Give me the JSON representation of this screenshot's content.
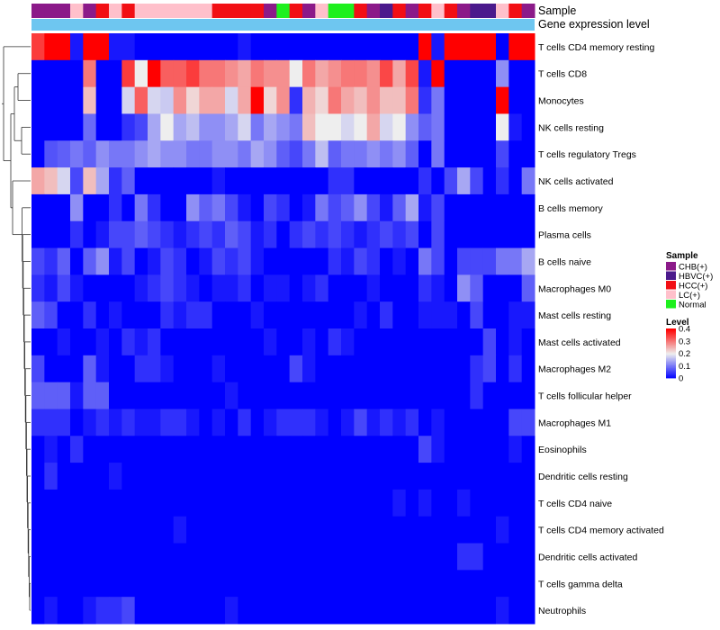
{
  "chart_data": {
    "type": "heatmap",
    "track_labels": {
      "sample": "Sample",
      "expression": "Gene expression level"
    },
    "sample_colors": {
      "CHB(+)": "#8B1A89",
      "HBVC(+)": "#4B1A8C",
      "HCC(+)": "#F20F14",
      "LC(+)": "#FFC0CB",
      "Normal": "#1EF01E"
    },
    "expression_track_color": "#6EC6F0",
    "sample_order": [
      "CHB(+)",
      "CHB(+)",
      "CHB(+)",
      "LC(+)",
      "CHB(+)",
      "HCC(+)",
      "LC(+)",
      "HCC(+)",
      "LC(+)",
      "LC(+)",
      "LC(+)",
      "LC(+)",
      "LC(+)",
      "LC(+)",
      "HCC(+)",
      "HCC(+)",
      "HCC(+)",
      "HCC(+)",
      "CHB(+)",
      "Normal",
      "HCC(+)",
      "CHB(+)",
      "LC(+)",
      "Normal",
      "Normal",
      "HCC(+)",
      "CHB(+)",
      "HBVC(+)",
      "HCC(+)",
      "CHB(+)",
      "HCC(+)",
      "LC(+)",
      "HCC(+)",
      "CHB(+)",
      "HBVC(+)",
      "HBVC(+)",
      "LC(+)",
      "HCC(+)",
      "CHB(+)"
    ],
    "rows": [
      "T cells CD4 memory resting",
      "T cells CD8",
      "Monocytes",
      "NK cells resting",
      "T cells regulatory  Tregs",
      "NK cells activated",
      "B cells memory",
      "Plasma cells",
      "B cells naive",
      "Macrophages M0",
      "Mast cells resting",
      "Mast cells activated",
      "Macrophages M2",
      "T cells follicular helper",
      "Macrophages M1",
      "Eosinophils",
      "Dendritic cells resting",
      "T cells CD4 naive",
      "T cells CD4 memory activated",
      "Dendritic cells activated",
      "T cells gamma delta",
      "Neutrophils"
    ],
    "values": [
      [
        0.35,
        0.4,
        0.4,
        0.02,
        0.4,
        0.4,
        0.02,
        0.02,
        0.0,
        0.0,
        0.0,
        0.0,
        0.0,
        0.0,
        0.0,
        0.0,
        0.02,
        0.0,
        0.0,
        0.0,
        0.0,
        0.0,
        0.0,
        0.0,
        0.0,
        0.0,
        0.0,
        0.0,
        0.0,
        0.0,
        0.4,
        0.02,
        0.4,
        0.4,
        0.4,
        0.4,
        0.0,
        0.4,
        0.4
      ],
      [
        0.0,
        0.0,
        0.0,
        0.0,
        0.3,
        0.0,
        0.0,
        0.35,
        0.2,
        0.4,
        0.32,
        0.32,
        0.35,
        0.3,
        0.3,
        0.28,
        0.26,
        0.3,
        0.28,
        0.28,
        0.2,
        0.3,
        0.26,
        0.28,
        0.3,
        0.3,
        0.28,
        0.34,
        0.26,
        0.34,
        0.02,
        0.4,
        0.0,
        0.0,
        0.0,
        0.0,
        0.12,
        0.0,
        0.0
      ],
      [
        0.0,
        0.0,
        0.0,
        0.0,
        0.24,
        0.0,
        0.0,
        0.18,
        0.32,
        0.18,
        0.17,
        0.28,
        0.22,
        0.26,
        0.26,
        0.18,
        0.26,
        0.4,
        0.22,
        0.28,
        0.04,
        0.25,
        0.22,
        0.3,
        0.26,
        0.24,
        0.28,
        0.24,
        0.24,
        0.3,
        0.04,
        0.1,
        0.0,
        0.0,
        0.0,
        0.0,
        0.4,
        0.0,
        0.0
      ],
      [
        0.0,
        0.0,
        0.0,
        0.0,
        0.09,
        0.0,
        0.0,
        0.04,
        0.06,
        0.14,
        0.2,
        0.14,
        0.16,
        0.12,
        0.12,
        0.14,
        0.18,
        0.1,
        0.14,
        0.12,
        0.1,
        0.24,
        0.2,
        0.2,
        0.18,
        0.2,
        0.26,
        0.18,
        0.2,
        0.12,
        0.08,
        0.1,
        0.0,
        0.0,
        0.0,
        0.0,
        0.2,
        0.02,
        0.0
      ],
      [
        0.0,
        0.07,
        0.08,
        0.1,
        0.08,
        0.12,
        0.1,
        0.1,
        0.12,
        0.14,
        0.12,
        0.12,
        0.1,
        0.1,
        0.12,
        0.12,
        0.1,
        0.14,
        0.12,
        0.08,
        0.06,
        0.1,
        0.16,
        0.08,
        0.1,
        0.1,
        0.12,
        0.1,
        0.12,
        0.08,
        0.0,
        0.1,
        0.0,
        0.0,
        0.0,
        0.0,
        0.06,
        0.0,
        0.0
      ],
      [
        0.26,
        0.24,
        0.18,
        0.06,
        0.24,
        0.14,
        0.04,
        0.08,
        0.0,
        0.0,
        0.0,
        0.0,
        0.0,
        0.0,
        0.02,
        0.0,
        0.0,
        0.0,
        0.0,
        0.0,
        0.0,
        0.0,
        0.0,
        0.04,
        0.04,
        0.0,
        0.0,
        0.0,
        0.0,
        0.0,
        0.04,
        0.0,
        0.06,
        0.14,
        0.06,
        0.0,
        0.04,
        0.0,
        0.1
      ],
      [
        0.0,
        0.0,
        0.0,
        0.12,
        0.0,
        0.0,
        0.04,
        0.0,
        0.1,
        0.04,
        0.0,
        0.0,
        0.12,
        0.08,
        0.1,
        0.06,
        0.02,
        0.0,
        0.06,
        0.04,
        0.0,
        0.02,
        0.1,
        0.06,
        0.08,
        0.12,
        0.06,
        0.02,
        0.08,
        0.14,
        0.02,
        0.06,
        0.0,
        0.0,
        0.0,
        0.0,
        0.0,
        0.0,
        0.0
      ],
      [
        0.0,
        0.0,
        0.0,
        0.04,
        0.0,
        0.02,
        0.06,
        0.06,
        0.08,
        0.06,
        0.04,
        0.02,
        0.04,
        0.06,
        0.04,
        0.08,
        0.06,
        0.02,
        0.04,
        0.0,
        0.04,
        0.06,
        0.04,
        0.06,
        0.04,
        0.02,
        0.04,
        0.06,
        0.04,
        0.06,
        0.0,
        0.06,
        0.0,
        0.0,
        0.0,
        0.0,
        0.0,
        0.0,
        0.0
      ],
      [
        0.06,
        0.04,
        0.08,
        0.0,
        0.08,
        0.12,
        0.02,
        0.06,
        0.0,
        0.02,
        0.06,
        0.04,
        0.0,
        0.02,
        0.06,
        0.04,
        0.06,
        0.02,
        0.0,
        0.0,
        0.0,
        0.0,
        0.0,
        0.04,
        0.02,
        0.06,
        0.04,
        0.0,
        0.02,
        0.0,
        0.1,
        0.06,
        0.0,
        0.06,
        0.06,
        0.06,
        0.1,
        0.1,
        0.14
      ],
      [
        0.04,
        0.02,
        0.06,
        0.02,
        0.0,
        0.0,
        0.0,
        0.0,
        0.02,
        0.04,
        0.06,
        0.04,
        0.02,
        0.0,
        0.02,
        0.02,
        0.04,
        0.0,
        0.02,
        0.02,
        0.0,
        0.02,
        0.04,
        0.0,
        0.0,
        0.0,
        0.02,
        0.0,
        0.0,
        0.0,
        0.04,
        0.02,
        0.0,
        0.12,
        0.08,
        0.0,
        0.0,
        0.0,
        0.08
      ],
      [
        0.08,
        0.06,
        0.0,
        0.0,
        0.04,
        0.0,
        0.02,
        0.0,
        0.0,
        0.0,
        0.04,
        0.02,
        0.04,
        0.04,
        0.0,
        0.0,
        0.0,
        0.02,
        0.0,
        0.0,
        0.0,
        0.0,
        0.0,
        0.0,
        0.0,
        0.02,
        0.0,
        0.04,
        0.0,
        0.0,
        0.02,
        0.02,
        0.02,
        0.0,
        0.06,
        0.0,
        0.0,
        0.02,
        0.02
      ],
      [
        0.0,
        0.0,
        0.02,
        0.0,
        0.0,
        0.02,
        0.0,
        0.04,
        0.02,
        0.04,
        0.0,
        0.0,
        0.0,
        0.0,
        0.0,
        0.0,
        0.0,
        0.0,
        0.02,
        0.0,
        0.0,
        0.02,
        0.0,
        0.04,
        0.02,
        0.0,
        0.0,
        0.0,
        0.0,
        0.0,
        0.0,
        0.0,
        0.0,
        0.0,
        0.0,
        0.06,
        0.0,
        0.02,
        0.0
      ],
      [
        0.06,
        0.0,
        0.0,
        0.0,
        0.08,
        0.02,
        0.0,
        0.0,
        0.04,
        0.04,
        0.02,
        0.0,
        0.0,
        0.0,
        0.02,
        0.0,
        0.0,
        0.0,
        0.0,
        0.0,
        0.06,
        0.02,
        0.0,
        0.0,
        0.0,
        0.0,
        0.0,
        0.0,
        0.0,
        0.0,
        0.0,
        0.0,
        0.0,
        0.0,
        0.04,
        0.06,
        0.0,
        0.04,
        0.0
      ],
      [
        0.08,
        0.08,
        0.08,
        0.02,
        0.08,
        0.08,
        0.0,
        0.0,
        0.0,
        0.0,
        0.0,
        0.0,
        0.0,
        0.0,
        0.0,
        0.02,
        0.0,
        0.0,
        0.0,
        0.0,
        0.0,
        0.0,
        0.0,
        0.0,
        0.0,
        0.0,
        0.0,
        0.0,
        0.0,
        0.0,
        0.0,
        0.0,
        0.0,
        0.0,
        0.04,
        0.0,
        0.0,
        0.0,
        0.0
      ],
      [
        0.04,
        0.04,
        0.04,
        0.0,
        0.02,
        0.04,
        0.02,
        0.04,
        0.02,
        0.02,
        0.04,
        0.04,
        0.02,
        0.0,
        0.02,
        0.0,
        0.04,
        0.0,
        0.02,
        0.04,
        0.04,
        0.04,
        0.02,
        0.0,
        0.02,
        0.06,
        0.02,
        0.04,
        0.02,
        0.04,
        0.0,
        0.02,
        0.0,
        0.0,
        0.0,
        0.0,
        0.0,
        0.06,
        0.06
      ],
      [
        0.0,
        0.02,
        0.0,
        0.04,
        0.0,
        0.0,
        0.0,
        0.0,
        0.0,
        0.0,
        0.0,
        0.0,
        0.0,
        0.0,
        0.0,
        0.0,
        0.0,
        0.0,
        0.0,
        0.0,
        0.0,
        0.0,
        0.0,
        0.0,
        0.0,
        0.0,
        0.0,
        0.0,
        0.0,
        0.0,
        0.06,
        0.02,
        0.0,
        0.0,
        0.0,
        0.0,
        0.0,
        0.02,
        0.0
      ],
      [
        0.0,
        0.04,
        0.0,
        0.0,
        0.0,
        0.0,
        0.02,
        0.0,
        0.0,
        0.0,
        0.0,
        0.0,
        0.0,
        0.0,
        0.0,
        0.0,
        0.0,
        0.0,
        0.0,
        0.0,
        0.0,
        0.0,
        0.0,
        0.0,
        0.0,
        0.0,
        0.0,
        0.0,
        0.0,
        0.0,
        0.0,
        0.0,
        0.0,
        0.0,
        0.0,
        0.0,
        0.0,
        0.0,
        0.0
      ],
      [
        0.0,
        0.0,
        0.0,
        0.0,
        0.0,
        0.0,
        0.0,
        0.0,
        0.0,
        0.0,
        0.0,
        0.0,
        0.0,
        0.0,
        0.0,
        0.0,
        0.0,
        0.0,
        0.0,
        0.0,
        0.0,
        0.0,
        0.0,
        0.0,
        0.0,
        0.0,
        0.0,
        0.0,
        0.02,
        0.0,
        0.02,
        0.0,
        0.0,
        0.02,
        0.0,
        0.0,
        0.0,
        0.0,
        0.0
      ],
      [
        0.0,
        0.0,
        0.0,
        0.0,
        0.0,
        0.0,
        0.0,
        0.0,
        0.0,
        0.0,
        0.0,
        0.02,
        0.0,
        0.0,
        0.0,
        0.0,
        0.0,
        0.0,
        0.0,
        0.0,
        0.0,
        0.0,
        0.0,
        0.0,
        0.0,
        0.0,
        0.0,
        0.0,
        0.0,
        0.0,
        0.0,
        0.0,
        0.0,
        0.0,
        0.0,
        0.0,
        0.02,
        0.0,
        0.0
      ],
      [
        0.0,
        0.0,
        0.0,
        0.0,
        0.0,
        0.0,
        0.0,
        0.0,
        0.0,
        0.0,
        0.0,
        0.0,
        0.0,
        0.0,
        0.0,
        0.0,
        0.0,
        0.0,
        0.0,
        0.0,
        0.0,
        0.0,
        0.0,
        0.0,
        0.0,
        0.0,
        0.0,
        0.0,
        0.0,
        0.0,
        0.0,
        0.0,
        0.0,
        0.04,
        0.04,
        0.0,
        0.0,
        0.0,
        0.0
      ],
      [
        0.0,
        0.0,
        0.0,
        0.0,
        0.0,
        0.0,
        0.0,
        0.0,
        0.0,
        0.0,
        0.0,
        0.0,
        0.0,
        0.0,
        0.0,
        0.0,
        0.0,
        0.0,
        0.0,
        0.0,
        0.0,
        0.0,
        0.0,
        0.0,
        0.0,
        0.0,
        0.0,
        0.0,
        0.0,
        0.0,
        0.0,
        0.0,
        0.0,
        0.0,
        0.0,
        0.0,
        0.0,
        0.0,
        0.0
      ],
      [
        0.0,
        0.02,
        0.0,
        0.0,
        0.02,
        0.04,
        0.04,
        0.06,
        0.0,
        0.0,
        0.0,
        0.0,
        0.0,
        0.0,
        0.0,
        0.02,
        0.0,
        0.0,
        0.0,
        0.0,
        0.0,
        0.0,
        0.0,
        0.0,
        0.0,
        0.0,
        0.0,
        0.0,
        0.0,
        0.0,
        0.0,
        0.0,
        0.0,
        0.0,
        0.0,
        0.0,
        0.02,
        0.0,
        0.0
      ]
    ],
    "legend": {
      "sample_title": "Sample",
      "sample_entries": [
        "CHB(+)",
        "HBVC(+)",
        "HCC(+)",
        "LC(+)",
        "Normal"
      ],
      "level_title": "Level",
      "level_ticks": [
        "0.4",
        "0.3",
        "0.2",
        "0.1",
        "0"
      ],
      "level_tick_values": [
        0.4,
        0.3,
        0.2,
        0.1,
        0.0
      ],
      "level_range": [
        0,
        0.4
      ],
      "color_low": "#0000FF",
      "color_mid": "#EEEEEE",
      "color_high": "#FF0000",
      "placement": "right"
    }
  }
}
